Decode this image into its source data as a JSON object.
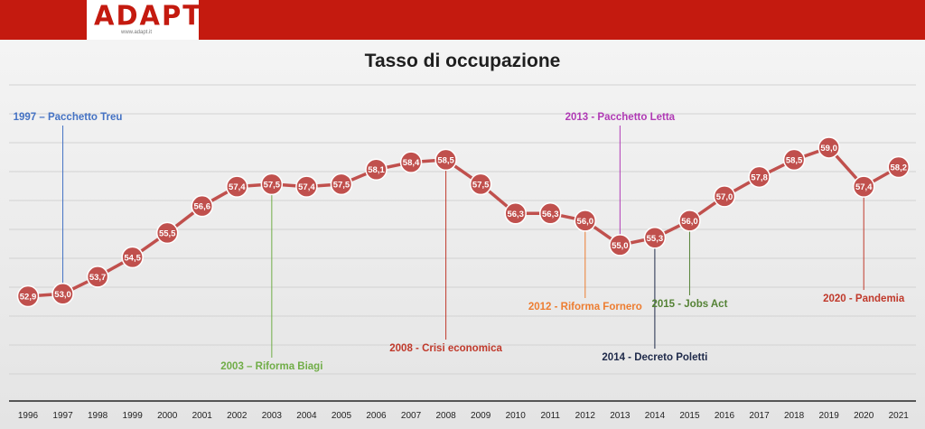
{
  "header": {
    "logo_text": "ADAPT",
    "logo_url": "www.adapt.it"
  },
  "colors": {
    "brand_red": "#c41a0f",
    "series_line": "#c0504d",
    "marker_fill": "#c0504d",
    "marker_label": "#ffffff"
  },
  "chart_data": {
    "type": "line",
    "title": "Tasso di occupazione",
    "xlabel": "",
    "ylabel": "",
    "ylim": [
      48.6,
      61.5
    ],
    "grid": true,
    "categories": [
      "1996",
      "1997",
      "1998",
      "1999",
      "2000",
      "2001",
      "2002",
      "2003",
      "2004",
      "2005",
      "2006",
      "2007",
      "2008",
      "2009",
      "2010",
      "2011",
      "2012",
      "2013",
      "2014",
      "2015",
      "2016",
      "2017",
      "2018",
      "2019",
      "2020",
      "2021"
    ],
    "values": [
      52.9,
      53.0,
      53.7,
      54.5,
      55.5,
      56.6,
      57.4,
      57.5,
      57.4,
      57.5,
      58.1,
      58.4,
      58.5,
      57.5,
      56.3,
      56.3,
      56.0,
      55.0,
      55.3,
      56.0,
      57.0,
      57.8,
      58.5,
      59.0,
      57.4,
      58.2
    ],
    "value_labels": [
      "52,9",
      "53,0",
      "53,7",
      "54,5",
      "55,5",
      "56,6",
      "57,4",
      "57,5",
      "57,4",
      "57,5",
      "58,1",
      "58,4",
      "58,5",
      "57,5",
      "56,3",
      "56,3",
      "56,0",
      "55,0",
      "55,3",
      "56,0",
      "57,0",
      "57,8",
      "58,5",
      "59,0",
      "57,4",
      "58,2"
    ],
    "annotations": [
      {
        "year": "1997",
        "text": "1997 – Pacchetto Treu",
        "color": "#4472c4",
        "position": "above"
      },
      {
        "year": "2003",
        "text": "2003 – Riforma Biagi",
        "color": "#70ad47",
        "position": "below"
      },
      {
        "year": "2008",
        "text": "2008 - Crisi economica",
        "color": "#c0392b",
        "position": "below"
      },
      {
        "year": "2012",
        "text": "2012 - Riforma Fornero",
        "color": "#ed7d31",
        "position": "below"
      },
      {
        "year": "2013",
        "text": "2013 - Pacchetto Letta",
        "color": "#b03ab5",
        "position": "above"
      },
      {
        "year": "2014",
        "text": "2014 - Decreto Poletti",
        "color": "#1f2a4a",
        "position": "below"
      },
      {
        "year": "2015",
        "text": "2015 - Jobs Act",
        "color": "#548235",
        "position": "below"
      },
      {
        "year": "2020",
        "text": "2020 - Pandemia",
        "color": "#c0392b",
        "position": "below"
      }
    ]
  }
}
